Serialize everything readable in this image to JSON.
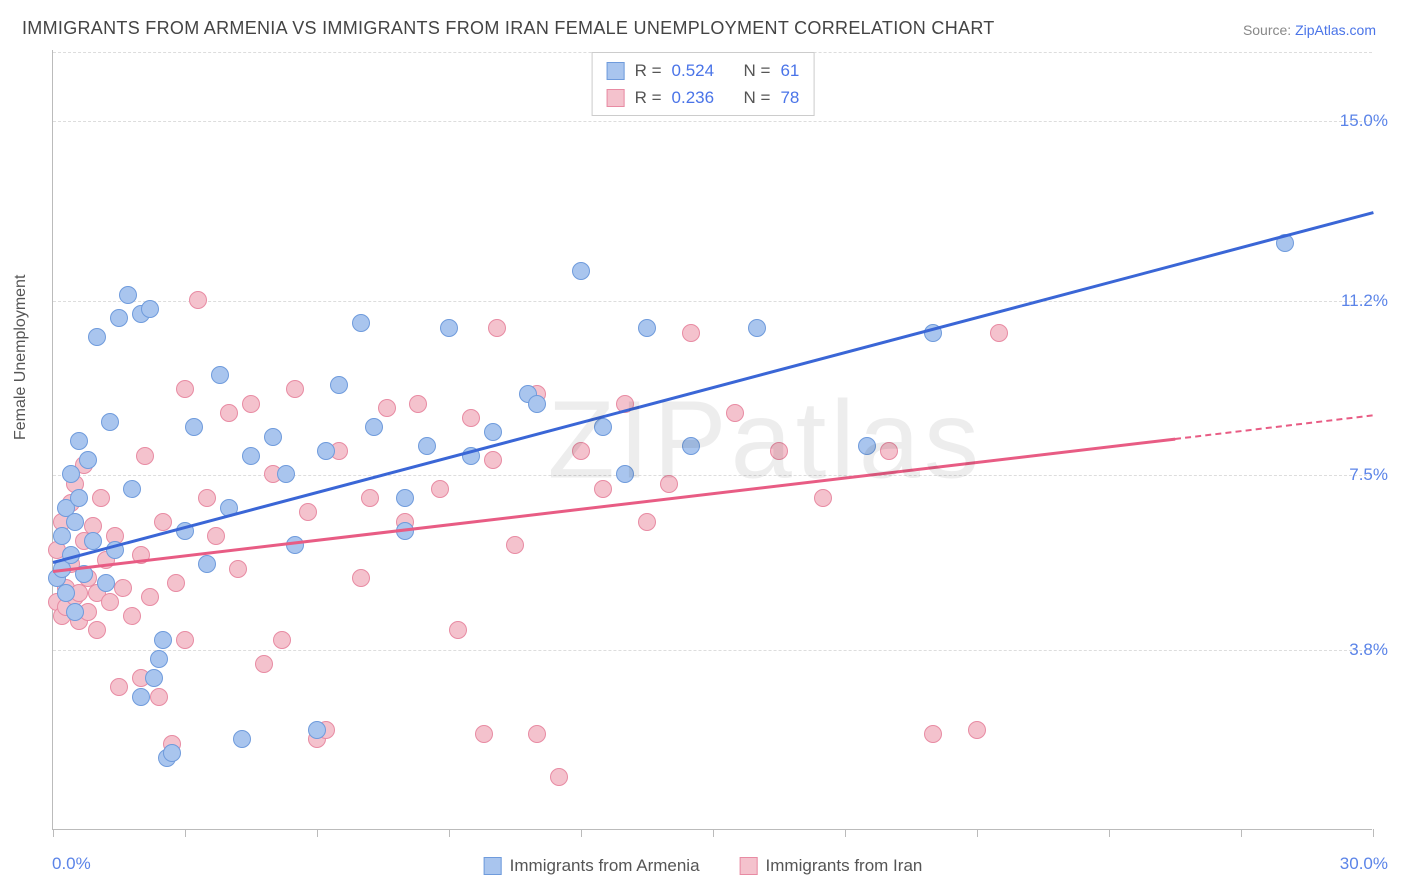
{
  "title": "IMMIGRANTS FROM ARMENIA VS IMMIGRANTS FROM IRAN FEMALE UNEMPLOYMENT CORRELATION CHART",
  "source_prefix": "Source: ",
  "source_name": "ZipAtlas.com",
  "watermark": "ZIPatlas",
  "ylabel": "Female Unemployment",
  "chart": {
    "type": "scatter",
    "xlim": [
      0,
      30
    ],
    "ylim": [
      0,
      16.5
    ],
    "x_min_label": "0.0%",
    "x_max_label": "30.0%",
    "xtick_positions": [
      0,
      3,
      6,
      9,
      12,
      15,
      18,
      21,
      24,
      27,
      30
    ],
    "y_gridlines": [
      3.8,
      7.5,
      11.2,
      15.0
    ],
    "y_gridline_labels": [
      "3.8%",
      "7.5%",
      "11.2%",
      "15.0%"
    ],
    "background_color": "#ffffff",
    "grid_color": "#dddddd",
    "axis_color": "#bbbbbb",
    "tick_label_color": "#5b84e8",
    "text_color": "#555555",
    "title_color": "#444444",
    "title_fontsize": 18,
    "label_fontsize": 16,
    "tick_fontsize": 17,
    "point_radius": 9,
    "trend_line_width": 3
  },
  "series": [
    {
      "name": "Immigrants from Armenia",
      "color_fill": "#a9c5ee",
      "color_stroke": "#6f9bdc",
      "trend_color": "#3a66d6",
      "R": "0.524",
      "N": "61",
      "trend": {
        "x1": 0,
        "y1": 5.7,
        "x2": 30,
        "y2": 13.1
      },
      "points": [
        [
          0.1,
          5.3
        ],
        [
          0.2,
          6.2
        ],
        [
          0.2,
          5.5
        ],
        [
          0.3,
          6.8
        ],
        [
          0.3,
          5.0
        ],
        [
          0.4,
          7.5
        ],
        [
          0.4,
          5.8
        ],
        [
          0.5,
          6.5
        ],
        [
          0.5,
          4.6
        ],
        [
          0.6,
          8.2
        ],
        [
          0.6,
          7.0
        ],
        [
          0.7,
          5.4
        ],
        [
          0.8,
          7.8
        ],
        [
          0.9,
          6.1
        ],
        [
          1.0,
          10.4
        ],
        [
          1.2,
          5.2
        ],
        [
          1.3,
          8.6
        ],
        [
          1.4,
          5.9
        ],
        [
          1.5,
          10.8
        ],
        [
          1.7,
          11.3
        ],
        [
          1.8,
          7.2
        ],
        [
          2.0,
          10.9
        ],
        [
          2.0,
          2.8
        ],
        [
          2.2,
          11.0
        ],
        [
          2.3,
          3.2
        ],
        [
          2.4,
          3.6
        ],
        [
          2.5,
          4.0
        ],
        [
          2.6,
          1.5
        ],
        [
          2.7,
          1.6
        ],
        [
          3.0,
          6.3
        ],
        [
          3.2,
          8.5
        ],
        [
          3.5,
          5.6
        ],
        [
          3.8,
          9.6
        ],
        [
          4.0,
          6.8
        ],
        [
          4.3,
          1.9
        ],
        [
          4.5,
          7.9
        ],
        [
          5.0,
          8.3
        ],
        [
          5.3,
          7.5
        ],
        [
          5.5,
          6.0
        ],
        [
          6.0,
          2.1
        ],
        [
          6.2,
          8.0
        ],
        [
          6.5,
          9.4
        ],
        [
          7.0,
          10.7
        ],
        [
          7.3,
          8.5
        ],
        [
          8.0,
          6.3
        ],
        [
          8.0,
          7.0
        ],
        [
          8.5,
          8.1
        ],
        [
          9.0,
          10.6
        ],
        [
          9.5,
          7.9
        ],
        [
          10.0,
          8.4
        ],
        [
          10.8,
          9.2
        ],
        [
          11.0,
          9.0
        ],
        [
          12.0,
          11.8
        ],
        [
          12.5,
          8.5
        ],
        [
          13.0,
          7.5
        ],
        [
          13.5,
          10.6
        ],
        [
          14.5,
          8.1
        ],
        [
          16.0,
          10.6
        ],
        [
          18.5,
          8.1
        ],
        [
          20.0,
          10.5
        ],
        [
          28.0,
          12.4
        ]
      ]
    },
    {
      "name": "Immigrants from Iran",
      "color_fill": "#f4c2cd",
      "color_stroke": "#e88ba3",
      "trend_color": "#e85c84",
      "R": "0.236",
      "N": "78",
      "trend": {
        "x1": 0,
        "y1": 5.5,
        "x2": 25.5,
        "y2": 8.3
      },
      "trend_dash": {
        "x1": 25.5,
        "y1": 8.3,
        "x2": 30,
        "y2": 8.8
      },
      "points": [
        [
          0.1,
          4.8
        ],
        [
          0.1,
          5.9
        ],
        [
          0.2,
          4.5
        ],
        [
          0.2,
          6.5
        ],
        [
          0.3,
          5.1
        ],
        [
          0.3,
          4.7
        ],
        [
          0.4,
          5.6
        ],
        [
          0.4,
          6.9
        ],
        [
          0.5,
          4.9
        ],
        [
          0.5,
          7.3
        ],
        [
          0.6,
          5.0
        ],
        [
          0.6,
          4.4
        ],
        [
          0.7,
          6.1
        ],
        [
          0.7,
          7.7
        ],
        [
          0.8,
          5.3
        ],
        [
          0.8,
          4.6
        ],
        [
          0.9,
          6.4
        ],
        [
          1.0,
          5.0
        ],
        [
          1.0,
          4.2
        ],
        [
          1.1,
          7.0
        ],
        [
          1.2,
          5.7
        ],
        [
          1.3,
          4.8
        ],
        [
          1.4,
          6.2
        ],
        [
          1.5,
          3.0
        ],
        [
          1.6,
          5.1
        ],
        [
          1.8,
          4.5
        ],
        [
          2.0,
          3.2
        ],
        [
          2.0,
          5.8
        ],
        [
          2.1,
          7.9
        ],
        [
          2.2,
          4.9
        ],
        [
          2.4,
          2.8
        ],
        [
          2.5,
          6.5
        ],
        [
          2.7,
          1.8
        ],
        [
          2.8,
          5.2
        ],
        [
          3.0,
          9.3
        ],
        [
          3.0,
          4.0
        ],
        [
          3.3,
          11.2
        ],
        [
          3.5,
          7.0
        ],
        [
          3.7,
          6.2
        ],
        [
          4.0,
          8.8
        ],
        [
          4.2,
          5.5
        ],
        [
          4.5,
          9.0
        ],
        [
          4.8,
          3.5
        ],
        [
          5.0,
          7.5
        ],
        [
          5.2,
          4.0
        ],
        [
          5.5,
          9.3
        ],
        [
          5.8,
          6.7
        ],
        [
          6.0,
          1.9
        ],
        [
          6.2,
          2.1
        ],
        [
          6.5,
          8.0
        ],
        [
          7.0,
          5.3
        ],
        [
          7.2,
          7.0
        ],
        [
          7.6,
          8.9
        ],
        [
          8.0,
          6.5
        ],
        [
          8.3,
          9.0
        ],
        [
          8.8,
          7.2
        ],
        [
          9.2,
          4.2
        ],
        [
          9.5,
          8.7
        ],
        [
          9.8,
          2.0
        ],
        [
          10.0,
          7.8
        ],
        [
          10.1,
          10.6
        ],
        [
          10.5,
          6.0
        ],
        [
          11.0,
          2.0
        ],
        [
          11.0,
          9.2
        ],
        [
          11.5,
          1.1
        ],
        [
          12.0,
          8.0
        ],
        [
          12.5,
          7.2
        ],
        [
          13.0,
          9.0
        ],
        [
          13.5,
          6.5
        ],
        [
          14.0,
          7.3
        ],
        [
          14.5,
          10.5
        ],
        [
          15.5,
          8.8
        ],
        [
          16.5,
          8.0
        ],
        [
          17.5,
          7.0
        ],
        [
          19.0,
          8.0
        ],
        [
          20.0,
          2.0
        ],
        [
          21.0,
          2.1
        ],
        [
          21.5,
          10.5
        ]
      ]
    }
  ]
}
